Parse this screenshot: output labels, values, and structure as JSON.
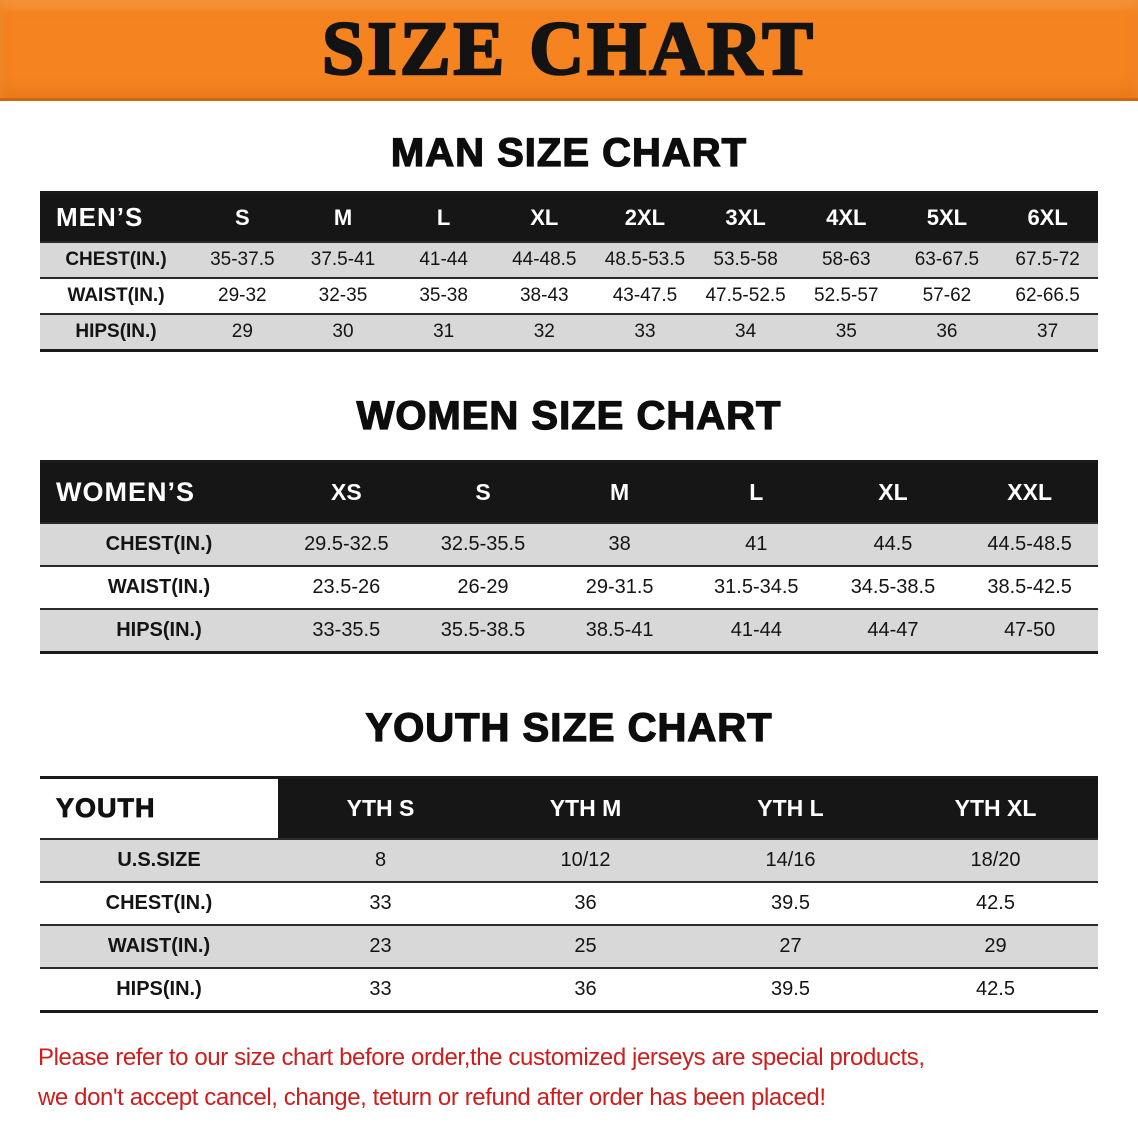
{
  "banner": {
    "title": "SIZE CHART"
  },
  "sections": [
    {
      "heading": "MAN SIZE CHART",
      "table": {
        "header": [
          "MEN’S",
          "S",
          "M",
          "L",
          "XL",
          "2XL",
          "3XL",
          "4XL",
          "5XL",
          "6XL"
        ],
        "rows": [
          [
            "CHEST(IN.)",
            "35-37.5",
            "37.5-41",
            "41-44",
            "44-48.5",
            "48.5-53.5",
            "53.5-58",
            "58-63",
            "63-67.5",
            "67.5-72"
          ],
          [
            "WAIST(IN.)",
            "29-32",
            "32-35",
            "35-38",
            "38-43",
            "43-47.5",
            "47.5-52.5",
            "52.5-57",
            "57-62",
            "62-66.5"
          ],
          [
            "HIPS(IN.)",
            "29",
            "30",
            "31",
            "32",
            "33",
            "34",
            "35",
            "36",
            "37"
          ]
        ]
      }
    },
    {
      "heading": "WOMEN SIZE CHART",
      "table": {
        "header": [
          "WOMEN’S",
          "XS",
          "S",
          "M",
          "L",
          "XL",
          "XXL"
        ],
        "rows": [
          [
            "CHEST(IN.)",
            "29.5-32.5",
            "32.5-35.5",
            "38",
            "41",
            "44.5",
            "44.5-48.5"
          ],
          [
            "WAIST(IN.)",
            "23.5-26",
            "26-29",
            "29-31.5",
            "31.5-34.5",
            "34.5-38.5",
            "38.5-42.5"
          ],
          [
            "HIPS(IN.)",
            "33-35.5",
            "35.5-38.5",
            "38.5-41",
            "41-44",
            "44-47",
            "47-50"
          ]
        ]
      }
    },
    {
      "heading": "YOUTH SIZE CHART",
      "table": {
        "header": [
          "YOUTH",
          "YTH S",
          "YTH M",
          "YTH L",
          "YTH XL"
        ],
        "rows": [
          [
            "U.S.SIZE",
            "8",
            "10/12",
            "14/16",
            "18/20"
          ],
          [
            "CHEST(IN.)",
            "33",
            "36",
            "39.5",
            "42.5"
          ],
          [
            "WAIST(IN.)",
            "23",
            "25",
            "27",
            "29"
          ],
          [
            "HIPS(IN.)",
            "33",
            "36",
            "39.5",
            "42.5"
          ]
        ]
      }
    }
  ],
  "disclaimer": {
    "lines": [
      "Please refer to our size chart before order,the customized jerseys are special products,",
      "we don't accept cancel, change, teturn or refund after order has been placed!"
    ]
  },
  "colors": {
    "banner_bg": "#f5831f",
    "table_header_bg": "#161616",
    "table_header_text": "#ffffff",
    "row_stripe": "#d8d8d8",
    "disclaimer_text": "#ce1d1d"
  }
}
